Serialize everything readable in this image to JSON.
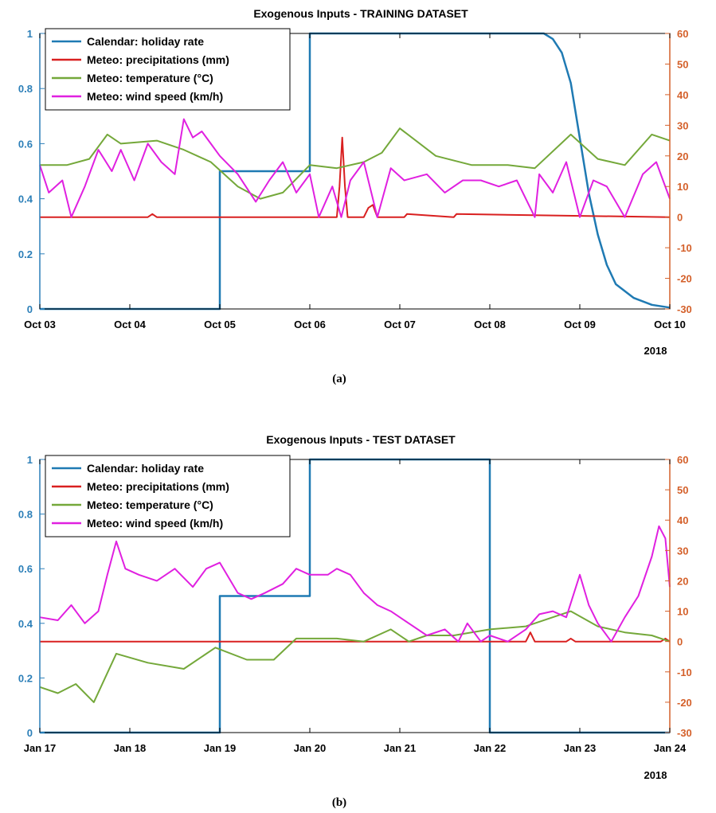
{
  "colors": {
    "holiday": "#1f7ab3",
    "precip": "#d92020",
    "temp": "#74a83a",
    "wind": "#e020e0",
    "left_axis": "#2c7fb8",
    "right_axis": "#d4602a"
  },
  "chart_data": [
    {
      "type": "line",
      "title": "Exogenous Inputs - TRAINING DATASET",
      "caption": "(a)",
      "year_label": "2018",
      "x_ticks": [
        "Oct 03",
        "Oct 04",
        "Oct 05",
        "Oct 06",
        "Oct 07",
        "Oct 08",
        "Oct 09",
        "Oct 10"
      ],
      "xlim": [
        "2018-10-03",
        "2018-10-10"
      ],
      "left_ylim": [
        0,
        1
      ],
      "left_ticks": [
        "0",
        "0.2",
        "0.4",
        "0.6",
        "0.8",
        "1"
      ],
      "right_ylim": [
        -30,
        60
      ],
      "right_ticks": [
        "-30",
        "-20",
        "-10",
        "0",
        "10",
        "20",
        "30",
        "40",
        "50",
        "60"
      ],
      "legend_position": "top-left",
      "series": [
        {
          "name": "Calendar: holiday rate",
          "axis": "left",
          "color_key": "holiday",
          "x": [
            "2018-10-03",
            "2018-10-05",
            "2018-10-05",
            "2018-10-06",
            "2018-10-06",
            "2018-10-08.6",
            "2018-10-08.7",
            "2018-10-08.8",
            "2018-10-08.9",
            "2018-10-09",
            "2018-10-09.1",
            "2018-10-09.2",
            "2018-10-09.3",
            "2018-10-09.4",
            "2018-10-09.6",
            "2018-10-09.8",
            "2018-10-10"
          ],
          "y": [
            0,
            0,
            0.5,
            0.5,
            1,
            1,
            0.98,
            0.93,
            0.82,
            0.62,
            0.42,
            0.27,
            0.16,
            0.09,
            0.04,
            0.015,
            0.005
          ]
        },
        {
          "name": "Meteo: precipitations (mm)",
          "axis": "right",
          "color_key": "precip",
          "x": [
            "2018-10-03",
            "2018-10-04.2",
            "2018-10-04.25",
            "2018-10-04.3",
            "2018-10-06.3",
            "2018-10-06.33",
            "2018-10-06.36",
            "2018-10-06.39",
            "2018-10-06.42",
            "2018-10-06.6",
            "2018-10-06.65",
            "2018-10-06.7",
            "2018-10-06.75",
            "2018-10-07.05",
            "2018-10-07.08",
            "2018-10-07.6",
            "2018-10-07.63",
            "2018-10-10"
          ],
          "y": [
            0,
            0,
            1,
            0,
            0,
            10,
            26,
            10,
            0,
            0,
            3,
            4,
            0,
            0,
            1,
            0,
            1,
            0
          ]
        },
        {
          "name": "Meteo: temperature (°C)",
          "axis": "right",
          "color_key": "temp",
          "x": [
            "2018-10-03",
            "2018-10-03.3",
            "2018-10-03.55",
            "2018-10-03.75",
            "2018-10-03.9",
            "2018-10-04.3",
            "2018-10-04.6",
            "2018-10-04.9",
            "2018-10-05.2",
            "2018-10-05.45",
            "2018-10-05.7",
            "2018-10-06",
            "2018-10-06.3",
            "2018-10-06.6",
            "2018-10-06.8",
            "2018-10-07",
            "2018-10-07.4",
            "2018-10-07.8",
            "2018-10-08.2",
            "2018-10-08.5",
            "2018-10-08.9",
            "2018-10-09.2",
            "2018-10-09.5",
            "2018-10-09.8",
            "2018-10-10"
          ],
          "y": [
            17,
            17,
            19,
            27,
            24,
            25,
            22,
            18,
            10,
            6,
            8,
            17,
            16,
            18,
            21,
            29,
            20,
            17,
            17,
            16,
            27,
            19,
            17,
            27,
            25
          ]
        },
        {
          "name": "Meteo: wind speed (km/h)",
          "axis": "right",
          "color_key": "wind",
          "x": [
            "2018-10-03",
            "2018-10-03.1",
            "2018-10-03.25",
            "2018-10-03.35",
            "2018-10-03.5",
            "2018-10-03.65",
            "2018-10-03.8",
            "2018-10-03.9",
            "2018-10-04.05",
            "2018-10-04.2",
            "2018-10-04.35",
            "2018-10-04.5",
            "2018-10-04.6",
            "2018-10-04.7",
            "2018-10-04.8",
            "2018-10-04.9",
            "2018-10-05",
            "2018-10-05.2",
            "2018-10-05.4",
            "2018-10-05.55",
            "2018-10-05.7",
            "2018-10-05.85",
            "2018-10-06",
            "2018-10-06.1",
            "2018-10-06.25",
            "2018-10-06.35",
            "2018-10-06.45",
            "2018-10-06.6",
            "2018-10-06.75",
            "2018-10-06.9",
            "2018-10-07.05",
            "2018-10-07.3",
            "2018-10-07.5",
            "2018-10-07.7",
            "2018-10-07.9",
            "2018-10-08.1",
            "2018-10-08.3",
            "2018-10-08.5",
            "2018-10-08.55",
            "2018-10-08.7",
            "2018-10-08.85",
            "2018-10-09",
            "2018-10-09.15",
            "2018-10-09.3",
            "2018-10-09.5",
            "2018-10-09.7",
            "2018-10-09.85",
            "2018-10-10"
          ],
          "y": [
            17,
            8,
            12,
            0,
            10,
            22,
            15,
            22,
            12,
            24,
            18,
            14,
            32,
            26,
            28,
            24,
            20,
            14,
            5,
            12,
            18,
            8,
            14,
            0,
            10,
            0,
            12,
            18,
            0,
            16,
            12,
            14,
            8,
            12,
            12,
            10,
            12,
            0,
            14,
            8,
            18,
            0,
            12,
            10,
            0,
            14,
            18,
            6
          ]
        }
      ]
    },
    {
      "type": "line",
      "title": "Exogenous Inputs - TEST DATASET",
      "caption": "(b)",
      "year_label": "2018",
      "x_ticks": [
        "Jan 17",
        "Jan 18",
        "Jan 19",
        "Jan 20",
        "Jan 21",
        "Jan 22",
        "Jan 23",
        "Jan 24"
      ],
      "xlim": [
        "2018-01-17",
        "2018-01-24"
      ],
      "left_ylim": [
        0,
        1
      ],
      "left_ticks": [
        "0",
        "0.2",
        "0.4",
        "0.6",
        "0.8",
        "1"
      ],
      "right_ylim": [
        -30,
        60
      ],
      "right_ticks": [
        "-30",
        "-20",
        "-10",
        "0",
        "10",
        "20",
        "30",
        "40",
        "50",
        "60"
      ],
      "legend_position": "top-left",
      "series": [
        {
          "name": "Calendar: holiday rate",
          "axis": "left",
          "color_key": "holiday",
          "x": [
            "2018-01-17",
            "2018-01-19",
            "2018-01-19",
            "2018-01-20",
            "2018-01-20",
            "2018-01-22",
            "2018-01-22",
            "2018-01-24"
          ],
          "y": [
            0,
            0,
            0.5,
            0.5,
            1,
            1,
            0,
            0
          ]
        },
        {
          "name": "Meteo: precipitations (mm)",
          "axis": "right",
          "color_key": "precip",
          "x": [
            "2018-01-17",
            "2018-01-22.4",
            "2018-01-22.45",
            "2018-01-22.5",
            "2018-01-22.85",
            "2018-01-22.9",
            "2018-01-22.95",
            "2018-01-23.9",
            "2018-01-23.95",
            "2018-01-24"
          ],
          "y": [
            0,
            0,
            3,
            0,
            0,
            1,
            0,
            0,
            1,
            0
          ]
        },
        {
          "name": "Meteo: temperature (°C)",
          "axis": "right",
          "color_key": "temp",
          "x": [
            "2018-01-17",
            "2018-01-17.2",
            "2018-01-17.4",
            "2018-01-17.6",
            "2018-01-17.85",
            "2018-01-18.2",
            "2018-01-18.6",
            "2018-01-18.95",
            "2018-01-19.3",
            "2018-01-19.6",
            "2018-01-19.85",
            "2018-01-20.3",
            "2018-01-20.6",
            "2018-01-20.9",
            "2018-01-21.1",
            "2018-01-21.3",
            "2018-01-21.6",
            "2018-01-22",
            "2018-01-22.4",
            "2018-01-22.9",
            "2018-01-23.2",
            "2018-01-23.5",
            "2018-01-23.8",
            "2018-01-24"
          ],
          "y": [
            -15,
            -17,
            -14,
            -20,
            -4,
            -7,
            -9,
            -2,
            -6,
            -6,
            1,
            1,
            0,
            4,
            0,
            2,
            2,
            4,
            5,
            10,
            5,
            3,
            2,
            0
          ]
        },
        {
          "name": "Meteo: wind speed (km/h)",
          "axis": "right",
          "color_key": "wind",
          "x": [
            "2018-01-17",
            "2018-01-17.2",
            "2018-01-17.35",
            "2018-01-17.5",
            "2018-01-17.65",
            "2018-01-17.75",
            "2018-01-17.85",
            "2018-01-17.95",
            "2018-01-18.1",
            "2018-01-18.3",
            "2018-01-18.5",
            "2018-01-18.7",
            "2018-01-18.85",
            "2018-01-19",
            "2018-01-19.2",
            "2018-01-19.35",
            "2018-01-19.5",
            "2018-01-19.7",
            "2018-01-19.85",
            "2018-01-20",
            "2018-01-20.2",
            "2018-01-20.3",
            "2018-01-20.45",
            "2018-01-20.6",
            "2018-01-20.75",
            "2018-01-20.9",
            "2018-01-21.1",
            "2018-01-21.3",
            "2018-01-21.5",
            "2018-01-21.65",
            "2018-01-21.75",
            "2018-01-21.9",
            "2018-01-22",
            "2018-01-22.2",
            "2018-01-22.4",
            "2018-01-22.55",
            "2018-01-22.7",
            "2018-01-22.85",
            "2018-01-23",
            "2018-01-23.1",
            "2018-01-23.2",
            "2018-01-23.35",
            "2018-01-23.5",
            "2018-01-23.65",
            "2018-01-23.8",
            "2018-01-23.88",
            "2018-01-23.95",
            "2018-01-24"
          ],
          "y": [
            8,
            7,
            12,
            6,
            10,
            22,
            33,
            24,
            22,
            20,
            24,
            18,
            24,
            26,
            16,
            14,
            16,
            19,
            24,
            22,
            22,
            24,
            22,
            16,
            12,
            10,
            6,
            2,
            4,
            0,
            6,
            0,
            2,
            0,
            4,
            9,
            10,
            8,
            22,
            12,
            6,
            0,
            8,
            15,
            28,
            38,
            34,
            18
          ]
        }
      ]
    }
  ]
}
